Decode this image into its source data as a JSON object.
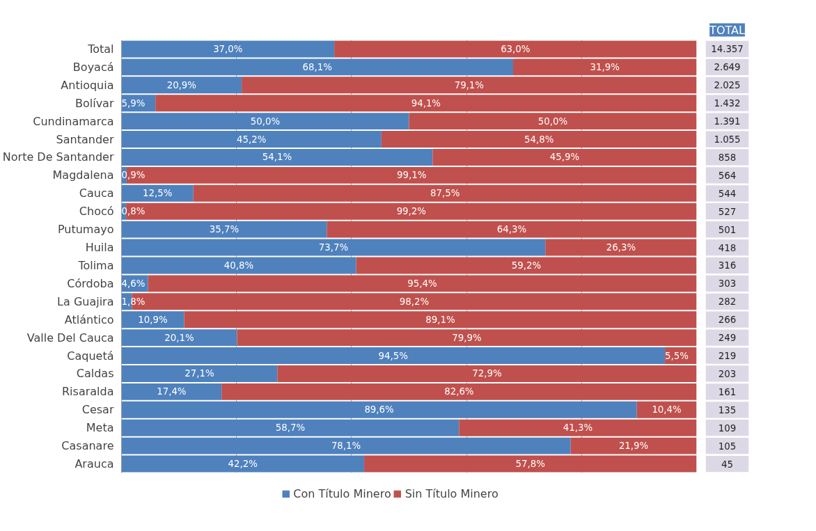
{
  "chart_data": {
    "type": "bar",
    "orientation": "horizontal",
    "stacked": true,
    "categories": [
      "Total",
      "Boyacá",
      "Antioquia",
      "Bolívar",
      "Cundinamarca",
      "Santander",
      "Norte De Santander",
      "Magdalena",
      "Cauca",
      "Chocó",
      "Putumayo",
      "Huila",
      "Tolima",
      "Córdoba",
      "La Guajira",
      "Atlántico",
      "Valle Del Cauca",
      "Caquetá",
      "Caldas",
      "Risaralda",
      "Cesar",
      "Meta",
      "Casanare",
      "Arauca"
    ],
    "series": [
      {
        "name": "Con Título Minero",
        "color": "#4f81bd",
        "values": [
          37.0,
          68.1,
          20.9,
          5.9,
          50.0,
          45.2,
          54.1,
          0.9,
          12.5,
          0.8,
          35.7,
          73.7,
          40.8,
          4.6,
          1.8,
          10.9,
          20.1,
          94.5,
          27.1,
          17.4,
          89.6,
          58.7,
          78.1,
          42.2
        ],
        "value_labels": [
          "37,0%",
          "68,1%",
          "20,9%",
          "5,9%",
          "50,0%",
          "45,2%",
          "54,1%",
          "0,9%",
          "12,5%",
          "0,8%",
          "35,7%",
          "73,7%",
          "40,8%",
          "4,6%",
          "1,8%",
          "10,9%",
          "20,1%",
          "94,5%",
          "27,1%",
          "17,4%",
          "89,6%",
          "58,7%",
          "78,1%",
          "42,2%"
        ]
      },
      {
        "name": "Sin Título Minero",
        "color": "#c0504d",
        "values": [
          63.0,
          31.9,
          79.1,
          94.1,
          50.0,
          54.8,
          45.9,
          99.1,
          87.5,
          99.2,
          64.3,
          26.3,
          59.2,
          95.4,
          98.2,
          89.1,
          79.9,
          5.5,
          72.9,
          82.6,
          10.4,
          41.3,
          21.9,
          57.8
        ],
        "value_labels": [
          "63,0%",
          "31,9%",
          "79,1%",
          "94,1%",
          "50,0%",
          "54,8%",
          "45,9%",
          "99,1%",
          "87,5%",
          "99,2%",
          "64,3%",
          "26,3%",
          "59,2%",
          "95,4%",
          "98,2%",
          "89,1%",
          "79,9%",
          "5,5%",
          "72,9%",
          "82,6%",
          "10,4%",
          "41,3%",
          "21,9%",
          "57,8%"
        ]
      }
    ],
    "xlim": [
      0,
      100
    ],
    "xticks": [
      {
        "value": 0,
        "label": null
      },
      {
        "value": 20,
        "label": null
      },
      {
        "value": 40,
        "label": null
      },
      {
        "value": 60,
        "label": null
      },
      {
        "value": 80,
        "label": null
      }
    ],
    "grid": "x",
    "legend": "bottom",
    "tick_labels": "y",
    "annotations": [
      "TOTAL",
      "14.357",
      "2.649",
      "2.025",
      "1.432",
      "1.391",
      "1.055",
      "858",
      "564",
      "544",
      "527",
      "501",
      "418",
      "316",
      "303",
      "282",
      "266",
      "249",
      "219",
      "203",
      "161",
      "135",
      "109",
      "105",
      "45"
    ]
  }
}
